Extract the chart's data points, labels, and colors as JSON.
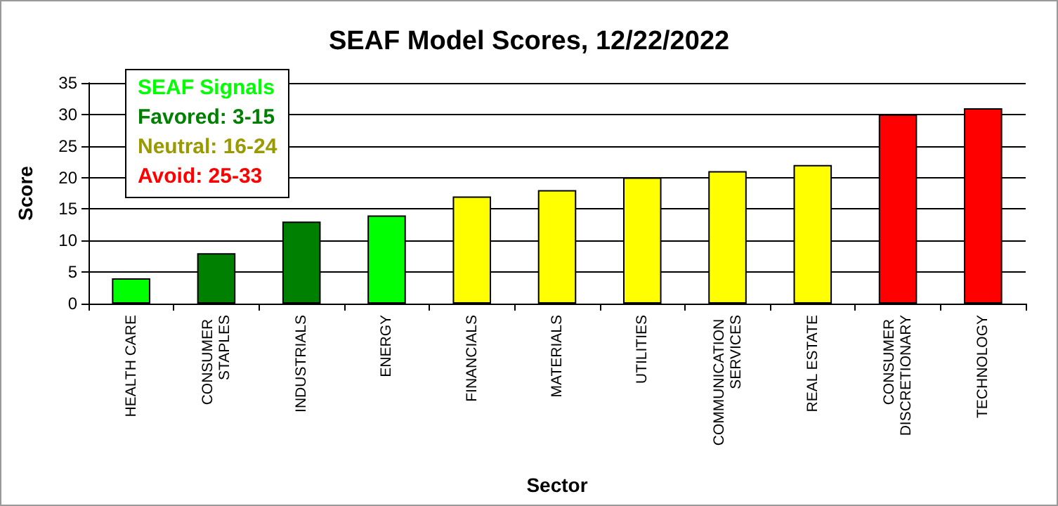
{
  "chart_data": {
    "type": "bar",
    "title": "SEAF Model Scores, 12/22/2022",
    "xlabel": "Sector",
    "ylabel": "Score",
    "categories": [
      "HEALTH CARE",
      "CONSUMER STAPLES",
      "INDUSTRIALS",
      "ENERGY",
      "FINANCIALS",
      "MATERIALS",
      "UTILITIES",
      "COMMUNICATION SERVICES",
      "REAL ESTATE",
      "CONSUMER DISCRETIONARY",
      "TECHNOLOGY"
    ],
    "values": [
      4,
      8,
      13,
      14,
      17,
      18,
      20,
      21,
      22,
      30,
      31
    ],
    "colors": [
      "#00ff00",
      "#008000",
      "#008000",
      "#00ff00",
      "#ffff00",
      "#ffff00",
      "#ffff00",
      "#ffff00",
      "#ffff00",
      "#ff0000",
      "#ff0000"
    ],
    "ylim": [
      0,
      35
    ],
    "yticks": [
      0,
      5,
      10,
      15,
      20,
      25,
      30,
      35
    ],
    "grid": "y",
    "annotations": [
      "SEAF Signals",
      "Favored: 3-15",
      "Neutral: 16-24",
      "Avoid: 25-33"
    ]
  }
}
